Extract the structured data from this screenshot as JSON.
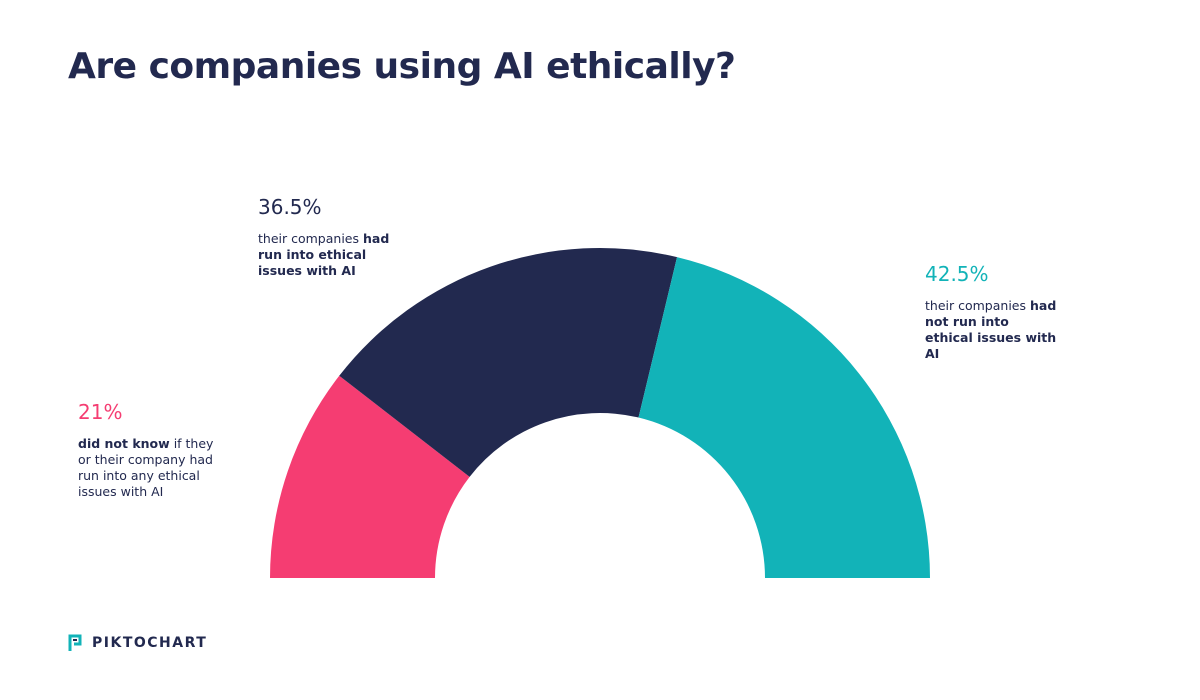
{
  "chart_data": {
    "type": "half-donut",
    "title": "Are companies using AI ethically?",
    "values": [
      21,
      36.5,
      42.5
    ],
    "value_labels": [
      "21%",
      "36.5%",
      "42.5%"
    ],
    "colors": [
      "#f53d72",
      "#22294f",
      "#12b3b8"
    ],
    "descriptions": [
      [
        {
          "text": "did not know",
          "bold": true
        },
        {
          "text": "if they or their company had run into any ethical issues with AI",
          "bold": false
        }
      ],
      [
        {
          "text": "their companies",
          "bold": false
        },
        {
          "text": "had run into ethical issues with AI",
          "bold": true
        }
      ],
      [
        {
          "text": "their companies",
          "bold": false
        },
        {
          "text": "had not run into ethical issues with AI",
          "bold": true
        }
      ]
    ]
  },
  "logo": "PIKTOCHART"
}
